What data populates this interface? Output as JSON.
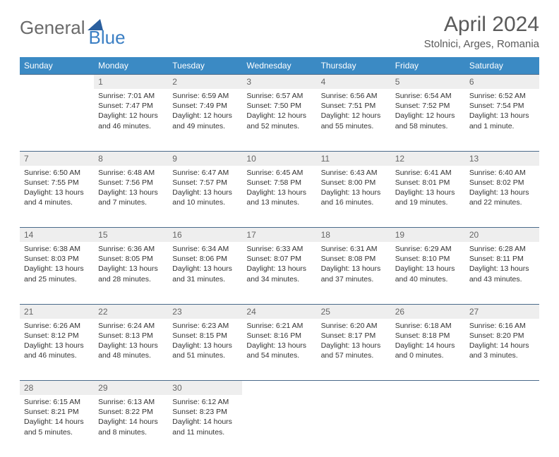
{
  "logo": {
    "text1": "General",
    "text2": "Blue",
    "shape_color": "#2a5f9e"
  },
  "title": "April 2024",
  "location": "Stolnici, Arges, Romania",
  "colors": {
    "header_bg": "#3b8ac4",
    "daynum_bg": "#eeeeee",
    "rule": "#4a6a8a"
  },
  "day_headers": [
    "Sunday",
    "Monday",
    "Tuesday",
    "Wednesday",
    "Thursday",
    "Friday",
    "Saturday"
  ],
  "weeks": [
    {
      "nums": [
        "",
        "1",
        "2",
        "3",
        "4",
        "5",
        "6"
      ],
      "cells": [
        null,
        {
          "sr": "7:01 AM",
          "ss": "7:47 PM",
          "dl": "12 hours and 46 minutes."
        },
        {
          "sr": "6:59 AM",
          "ss": "7:49 PM",
          "dl": "12 hours and 49 minutes."
        },
        {
          "sr": "6:57 AM",
          "ss": "7:50 PM",
          "dl": "12 hours and 52 minutes."
        },
        {
          "sr": "6:56 AM",
          "ss": "7:51 PM",
          "dl": "12 hours and 55 minutes."
        },
        {
          "sr": "6:54 AM",
          "ss": "7:52 PM",
          "dl": "12 hours and 58 minutes."
        },
        {
          "sr": "6:52 AM",
          "ss": "7:54 PM",
          "dl": "13 hours and 1 minute."
        }
      ]
    },
    {
      "nums": [
        "7",
        "8",
        "9",
        "10",
        "11",
        "12",
        "13"
      ],
      "cells": [
        {
          "sr": "6:50 AM",
          "ss": "7:55 PM",
          "dl": "13 hours and 4 minutes."
        },
        {
          "sr": "6:48 AM",
          "ss": "7:56 PM",
          "dl": "13 hours and 7 minutes."
        },
        {
          "sr": "6:47 AM",
          "ss": "7:57 PM",
          "dl": "13 hours and 10 minutes."
        },
        {
          "sr": "6:45 AM",
          "ss": "7:58 PM",
          "dl": "13 hours and 13 minutes."
        },
        {
          "sr": "6:43 AM",
          "ss": "8:00 PM",
          "dl": "13 hours and 16 minutes."
        },
        {
          "sr": "6:41 AM",
          "ss": "8:01 PM",
          "dl": "13 hours and 19 minutes."
        },
        {
          "sr": "6:40 AM",
          "ss": "8:02 PM",
          "dl": "13 hours and 22 minutes."
        }
      ]
    },
    {
      "nums": [
        "14",
        "15",
        "16",
        "17",
        "18",
        "19",
        "20"
      ],
      "cells": [
        {
          "sr": "6:38 AM",
          "ss": "8:03 PM",
          "dl": "13 hours and 25 minutes."
        },
        {
          "sr": "6:36 AM",
          "ss": "8:05 PM",
          "dl": "13 hours and 28 minutes."
        },
        {
          "sr": "6:34 AM",
          "ss": "8:06 PM",
          "dl": "13 hours and 31 minutes."
        },
        {
          "sr": "6:33 AM",
          "ss": "8:07 PM",
          "dl": "13 hours and 34 minutes."
        },
        {
          "sr": "6:31 AM",
          "ss": "8:08 PM",
          "dl": "13 hours and 37 minutes."
        },
        {
          "sr": "6:29 AM",
          "ss": "8:10 PM",
          "dl": "13 hours and 40 minutes."
        },
        {
          "sr": "6:28 AM",
          "ss": "8:11 PM",
          "dl": "13 hours and 43 minutes."
        }
      ]
    },
    {
      "nums": [
        "21",
        "22",
        "23",
        "24",
        "25",
        "26",
        "27"
      ],
      "cells": [
        {
          "sr": "6:26 AM",
          "ss": "8:12 PM",
          "dl": "13 hours and 46 minutes."
        },
        {
          "sr": "6:24 AM",
          "ss": "8:13 PM",
          "dl": "13 hours and 48 minutes."
        },
        {
          "sr": "6:23 AM",
          "ss": "8:15 PM",
          "dl": "13 hours and 51 minutes."
        },
        {
          "sr": "6:21 AM",
          "ss": "8:16 PM",
          "dl": "13 hours and 54 minutes."
        },
        {
          "sr": "6:20 AM",
          "ss": "8:17 PM",
          "dl": "13 hours and 57 minutes."
        },
        {
          "sr": "6:18 AM",
          "ss": "8:18 PM",
          "dl": "14 hours and 0 minutes."
        },
        {
          "sr": "6:16 AM",
          "ss": "8:20 PM",
          "dl": "14 hours and 3 minutes."
        }
      ]
    },
    {
      "nums": [
        "28",
        "29",
        "30",
        "",
        "",
        "",
        ""
      ],
      "cells": [
        {
          "sr": "6:15 AM",
          "ss": "8:21 PM",
          "dl": "14 hours and 5 minutes."
        },
        {
          "sr": "6:13 AM",
          "ss": "8:22 PM",
          "dl": "14 hours and 8 minutes."
        },
        {
          "sr": "6:12 AM",
          "ss": "8:23 PM",
          "dl": "14 hours and 11 minutes."
        },
        null,
        null,
        null,
        null
      ]
    }
  ],
  "labels": {
    "sunrise": "Sunrise:",
    "sunset": "Sunset:",
    "daylight": "Daylight:"
  }
}
